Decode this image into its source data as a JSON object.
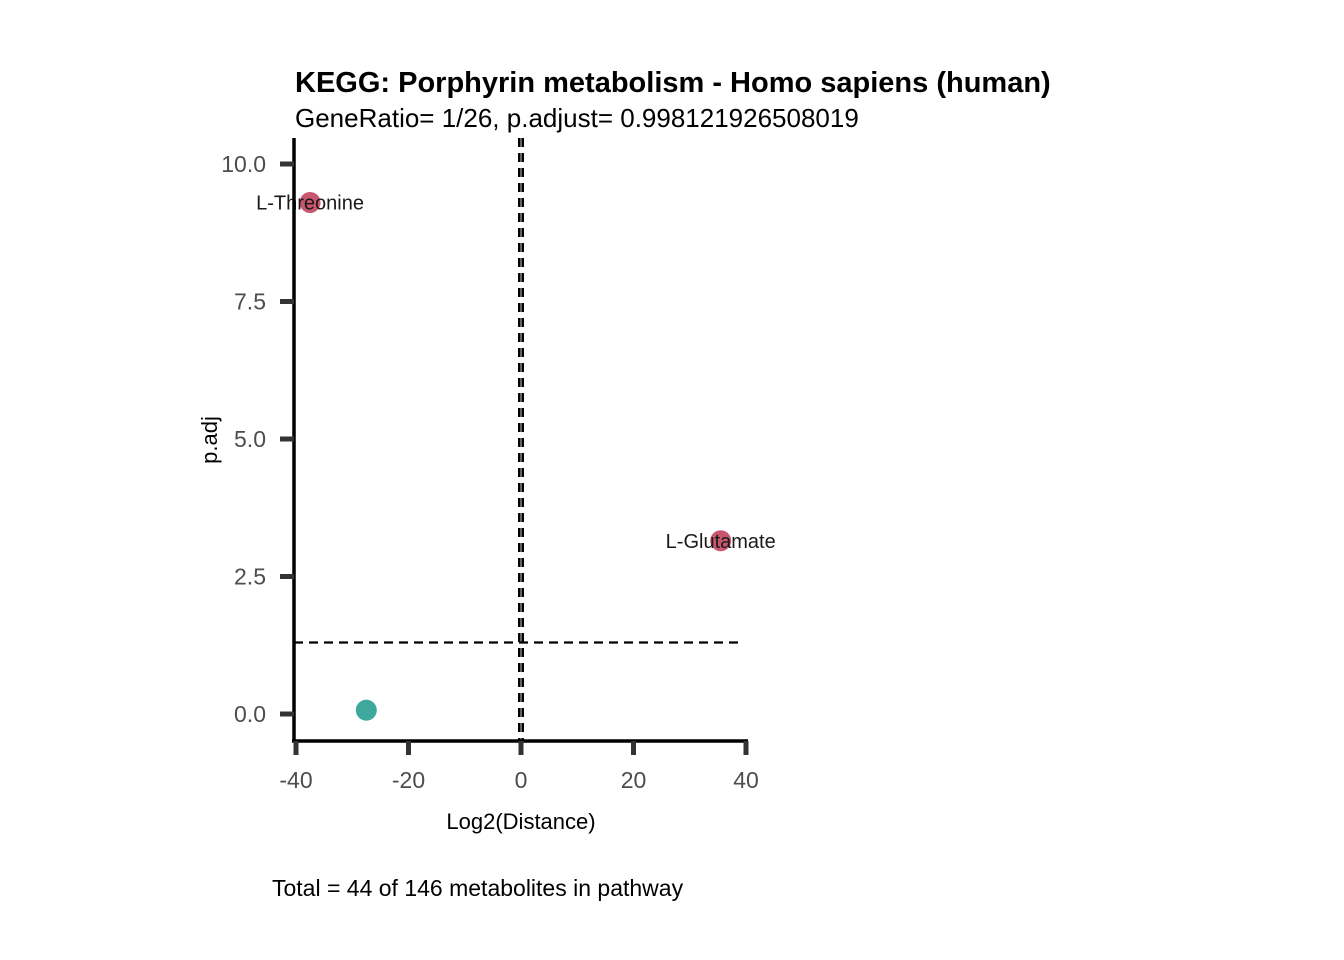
{
  "chart_data": {
    "type": "scatter",
    "title": "KEGG: Porphyrin metabolism - Homo sapiens (human)",
    "subtitle": "GeneRatio= 1/26, p.adjust= 0.998121926508019",
    "xlabel": "Log2(Distance)",
    "ylabel": "p.adj",
    "caption": "Total = 44 of 146 metabolites in pathway",
    "xlim": [
      -40,
      40
    ],
    "ylim": [
      0,
      10
    ],
    "xticks": [
      -40,
      -20,
      0,
      20,
      40
    ],
    "xtick_labels": [
      "-40",
      "-20",
      "0",
      "20",
      "40"
    ],
    "yticks": [
      0,
      2.5,
      5,
      7.5,
      10
    ],
    "ytick_labels": [
      "0.0",
      "2.5",
      "5.0",
      "7.5",
      "10.0"
    ],
    "grid": false,
    "reference_lines": {
      "vertical": [
        -0.3,
        0.3
      ],
      "horizontal": [
        1.3
      ]
    },
    "colors": {
      "significant": "#c8566e",
      "non_significant": "#3fa89c",
      "axis": "#000000",
      "tick": "#333333"
    },
    "points": [
      {
        "x": -37.5,
        "y": 9.3,
        "label": "L-Threonine",
        "group": "significant"
      },
      {
        "x": 35.5,
        "y": 3.15,
        "label": "L-Glutamate",
        "group": "significant"
      },
      {
        "x": -27.5,
        "y": 0.07,
        "label": "",
        "group": "non_significant"
      }
    ]
  }
}
